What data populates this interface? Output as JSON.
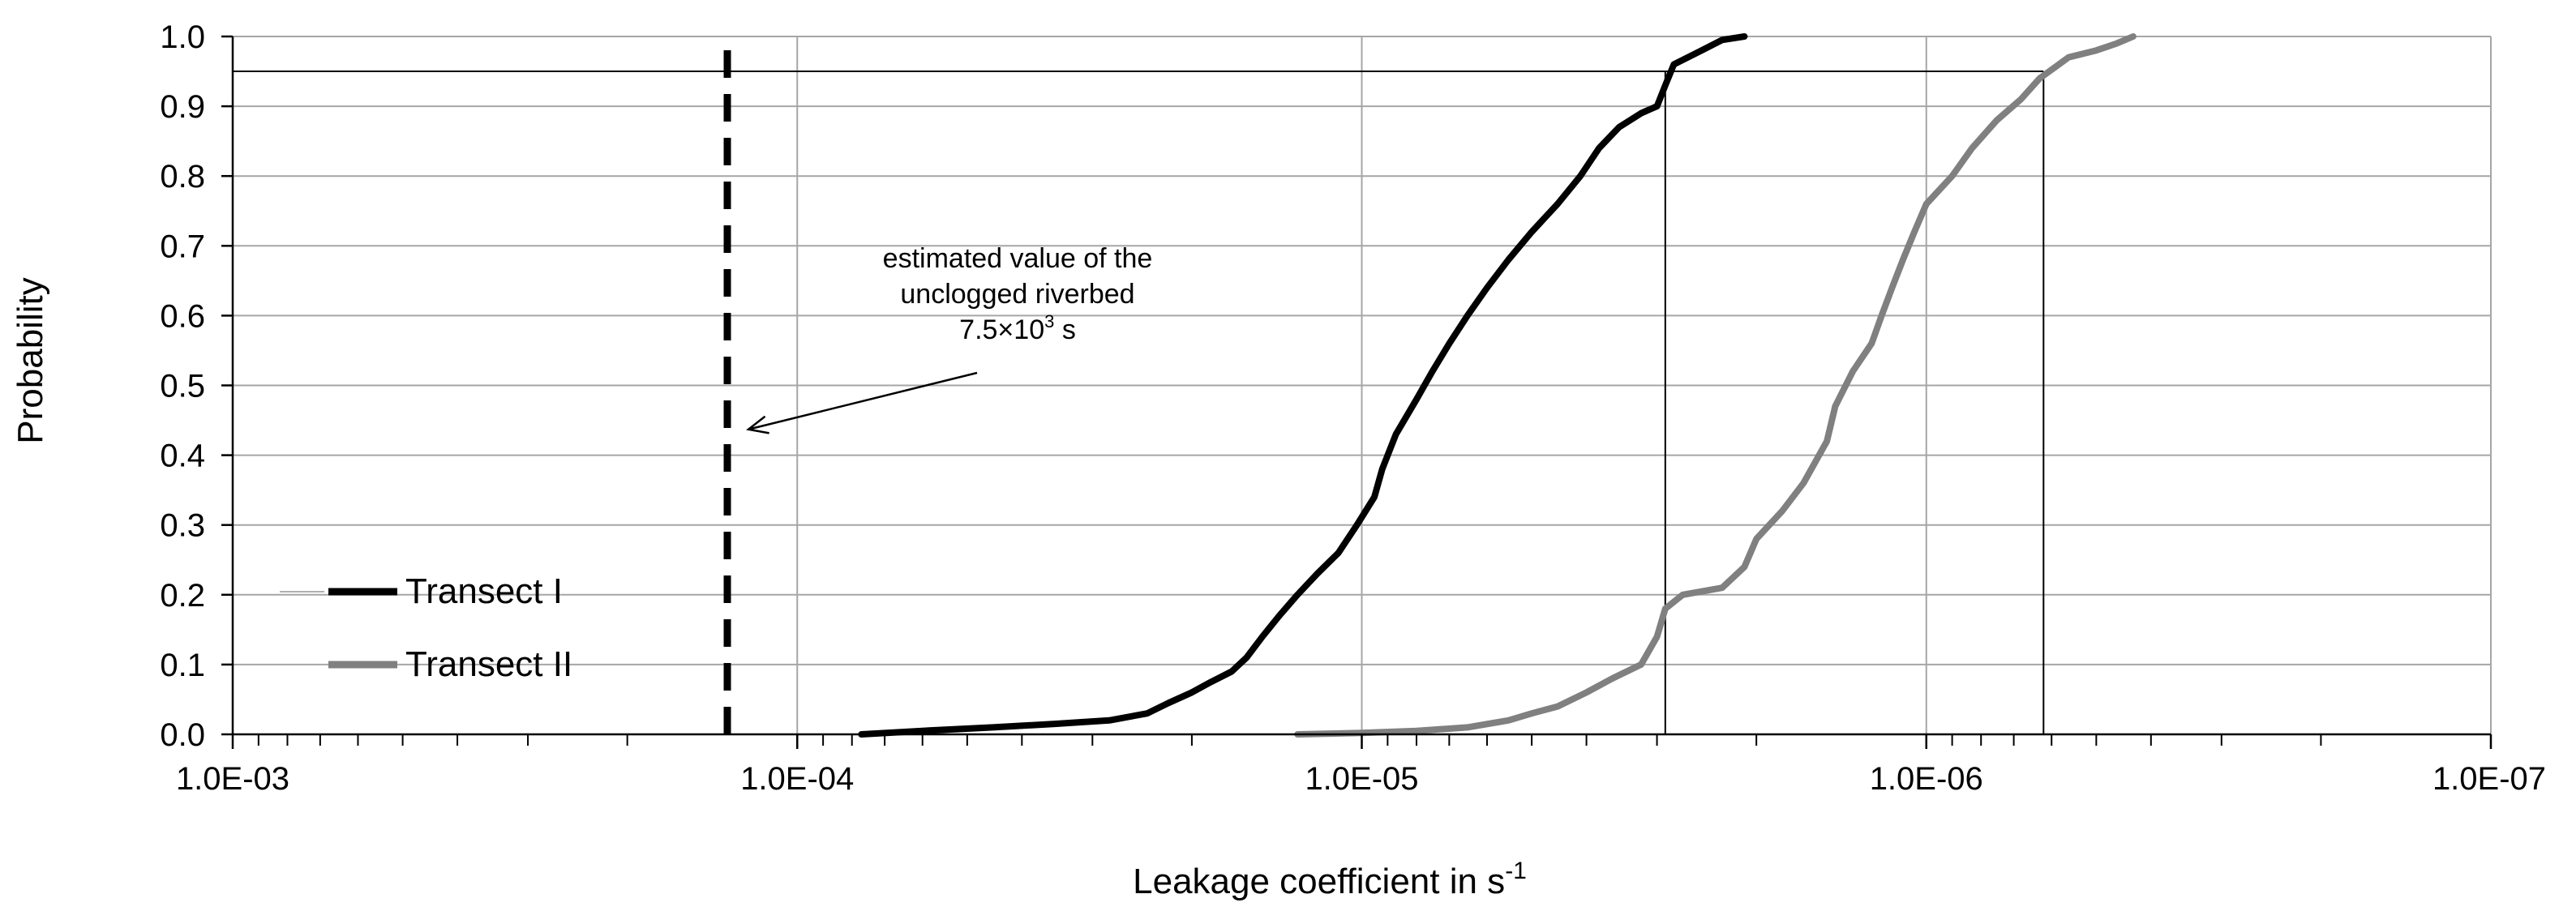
{
  "chart_data": {
    "type": "line",
    "title": "",
    "xlabel": "Leakage coefficient in s",
    "xlabel_superscript": "-1",
    "ylabel": "Probability",
    "x_scale": "log",
    "x_axis_reversed": true,
    "xlim": [
      0.001,
      1e-07
    ],
    "ylim": [
      0,
      1
    ],
    "x_ticks": [
      {
        "value": 0.001,
        "label": "1.0E-03"
      },
      {
        "value": 0.0001,
        "label": "1.0E-04"
      },
      {
        "value": 1e-05,
        "label": "1.0E-05"
      },
      {
        "value": 1e-06,
        "label": "1.0E-06"
      },
      {
        "value": 1e-07,
        "label": "1.0E-07"
      }
    ],
    "y_ticks": [
      {
        "value": 0.0,
        "label": "0.0"
      },
      {
        "value": 0.1,
        "label": "0.1"
      },
      {
        "value": 0.2,
        "label": "0.2"
      },
      {
        "value": 0.3,
        "label": "0.3"
      },
      {
        "value": 0.4,
        "label": "0.4"
      },
      {
        "value": 0.5,
        "label": "0.5"
      },
      {
        "value": 0.6,
        "label": "0.6"
      },
      {
        "value": 0.7,
        "label": "0.7"
      },
      {
        "value": 0.8,
        "label": "0.8"
      },
      {
        "value": 0.9,
        "label": "0.9"
      },
      {
        "value": 1.0,
        "label": "1.0"
      }
    ],
    "grid": true,
    "legend_position": "bottom-left",
    "series": [
      {
        "name": "Transect I",
        "color": "#000000",
        "points": [
          [
            7.7e-05,
            0.0
          ],
          [
            6e-05,
            0.005
          ],
          [
            4.5e-05,
            0.01
          ],
          [
            3.5e-05,
            0.015
          ],
          [
            2.8e-05,
            0.02
          ],
          [
            2.4e-05,
            0.03
          ],
          [
            2.2e-05,
            0.045
          ],
          [
            2e-05,
            0.06
          ],
          [
            1.85e-05,
            0.075
          ],
          [
            1.7e-05,
            0.09
          ],
          [
            1.6e-05,
            0.11
          ],
          [
            1.5e-05,
            0.14
          ],
          [
            1.4e-05,
            0.17
          ],
          [
            1.3e-05,
            0.2
          ],
          [
            1.2e-05,
            0.23
          ],
          [
            1.1e-05,
            0.26
          ],
          [
            1.02e-05,
            0.3
          ],
          [
            9.5e-06,
            0.34
          ],
          [
            9.2e-06,
            0.38
          ],
          [
            8.7e-06,
            0.43
          ],
          [
            8e-06,
            0.48
          ],
          [
            7.5e-06,
            0.52
          ],
          [
            7e-06,
            0.56
          ],
          [
            6.5e-06,
            0.6
          ],
          [
            6e-06,
            0.64
          ],
          [
            5.5e-06,
            0.68
          ],
          [
            5e-06,
            0.72
          ],
          [
            4.5e-06,
            0.76
          ],
          [
            4.1e-06,
            0.8
          ],
          [
            3.8e-06,
            0.84
          ],
          [
            3.5e-06,
            0.87
          ],
          [
            3.2e-06,
            0.89
          ],
          [
            3e-06,
            0.9
          ],
          [
            2.9e-06,
            0.93
          ],
          [
            2.8e-06,
            0.96
          ],
          [
            2.5e-06,
            0.98
          ],
          [
            2.3e-06,
            0.995
          ],
          [
            2.1e-06,
            1.0
          ]
        ]
      },
      {
        "name": "Transect II",
        "color": "#808080",
        "points": [
          [
            1.3e-05,
            0.0
          ],
          [
            1e-05,
            0.002
          ],
          [
            8e-06,
            0.005
          ],
          [
            6.5e-06,
            0.01
          ],
          [
            5.5e-06,
            0.02
          ],
          [
            5e-06,
            0.03
          ],
          [
            4.5e-06,
            0.04
          ],
          [
            4e-06,
            0.06
          ],
          [
            3.6e-06,
            0.08
          ],
          [
            3.2e-06,
            0.1
          ],
          [
            3e-06,
            0.14
          ],
          [
            2.9e-06,
            0.18
          ],
          [
            2.7e-06,
            0.2
          ],
          [
            2.3e-06,
            0.21
          ],
          [
            2.1e-06,
            0.24
          ],
          [
            2e-06,
            0.28
          ],
          [
            1.8e-06,
            0.32
          ],
          [
            1.65e-06,
            0.36
          ],
          [
            1.5e-06,
            0.42
          ],
          [
            1.45e-06,
            0.47
          ],
          [
            1.35e-06,
            0.52
          ],
          [
            1.25e-06,
            0.56
          ],
          [
            1.2e-06,
            0.6
          ],
          [
            1.15e-06,
            0.64
          ],
          [
            1.1e-06,
            0.68
          ],
          [
            1.05e-06,
            0.72
          ],
          [
            1e-06,
            0.76
          ],
          [
            9e-07,
            0.8
          ],
          [
            8.3e-07,
            0.84
          ],
          [
            7.5e-07,
            0.88
          ],
          [
            6.8e-07,
            0.91
          ],
          [
            6.3e-07,
            0.94
          ],
          [
            5.6e-07,
            0.97
          ],
          [
            5e-07,
            0.98
          ],
          [
            4.6e-07,
            0.99
          ],
          [
            4.3e-07,
            1.0
          ]
        ]
      }
    ],
    "reference_lines": [
      {
        "kind": "horizontal",
        "y": 0.95,
        "x_from": 0.001,
        "x_to": 6.2e-07
      },
      {
        "kind": "vertical",
        "x": 2.9e-06,
        "y_to": 0.95
      },
      {
        "kind": "vertical",
        "x": 6.2e-07,
        "y_to": 0.95
      },
      {
        "kind": "vertical-dashed",
        "x": 0.000133,
        "y_to": 1.0
      }
    ],
    "annotation": {
      "lines": [
        "estimated value  of the",
        "unclogged riverbed",
        "7.5×10"
      ],
      "superscript": "3",
      "suffix": " s",
      "arrow_target": {
        "x": 0.000133,
        "y": 0.43
      }
    }
  }
}
